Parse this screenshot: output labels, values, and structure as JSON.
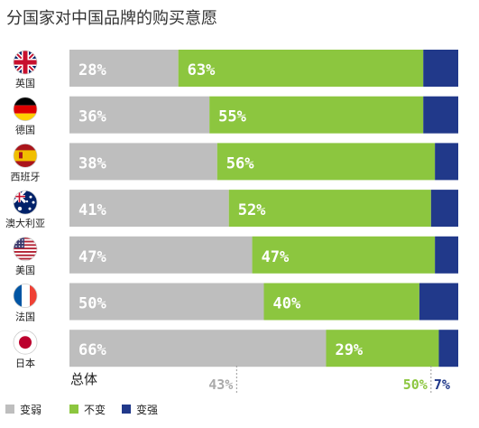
{
  "colors": {
    "weaker": "#bebebe",
    "unchanged": "#8cc63f",
    "stronger": "#21398a"
  },
  "chart_data": {
    "type": "bar",
    "title": "分国家对中国品牌的购买意愿",
    "categories": [
      "英国",
      "德国",
      "西班牙",
      "澳大利亚",
      "美国",
      "法国",
      "日本"
    ],
    "flags": [
      "uk-flag-icon",
      "germany-flag-icon",
      "spain-flag-icon",
      "australia-flag-icon",
      "usa-flag-icon",
      "france-flag-icon",
      "japan-flag-icon"
    ],
    "series": [
      {
        "name": "变弱",
        "values": [
          28,
          36,
          38,
          41,
          47,
          50,
          66
        ]
      },
      {
        "name": "不变",
        "values": [
          63,
          55,
          56,
          52,
          47,
          40,
          29
        ]
      },
      {
        "name": "变强",
        "values": [
          9,
          9,
          6,
          7,
          6,
          10,
          5
        ]
      }
    ],
    "total": {
      "label": "总体",
      "values": [
        43,
        50,
        7
      ]
    },
    "stacked": true,
    "orientation": "horizontal",
    "legend_position": "bottom-left"
  }
}
